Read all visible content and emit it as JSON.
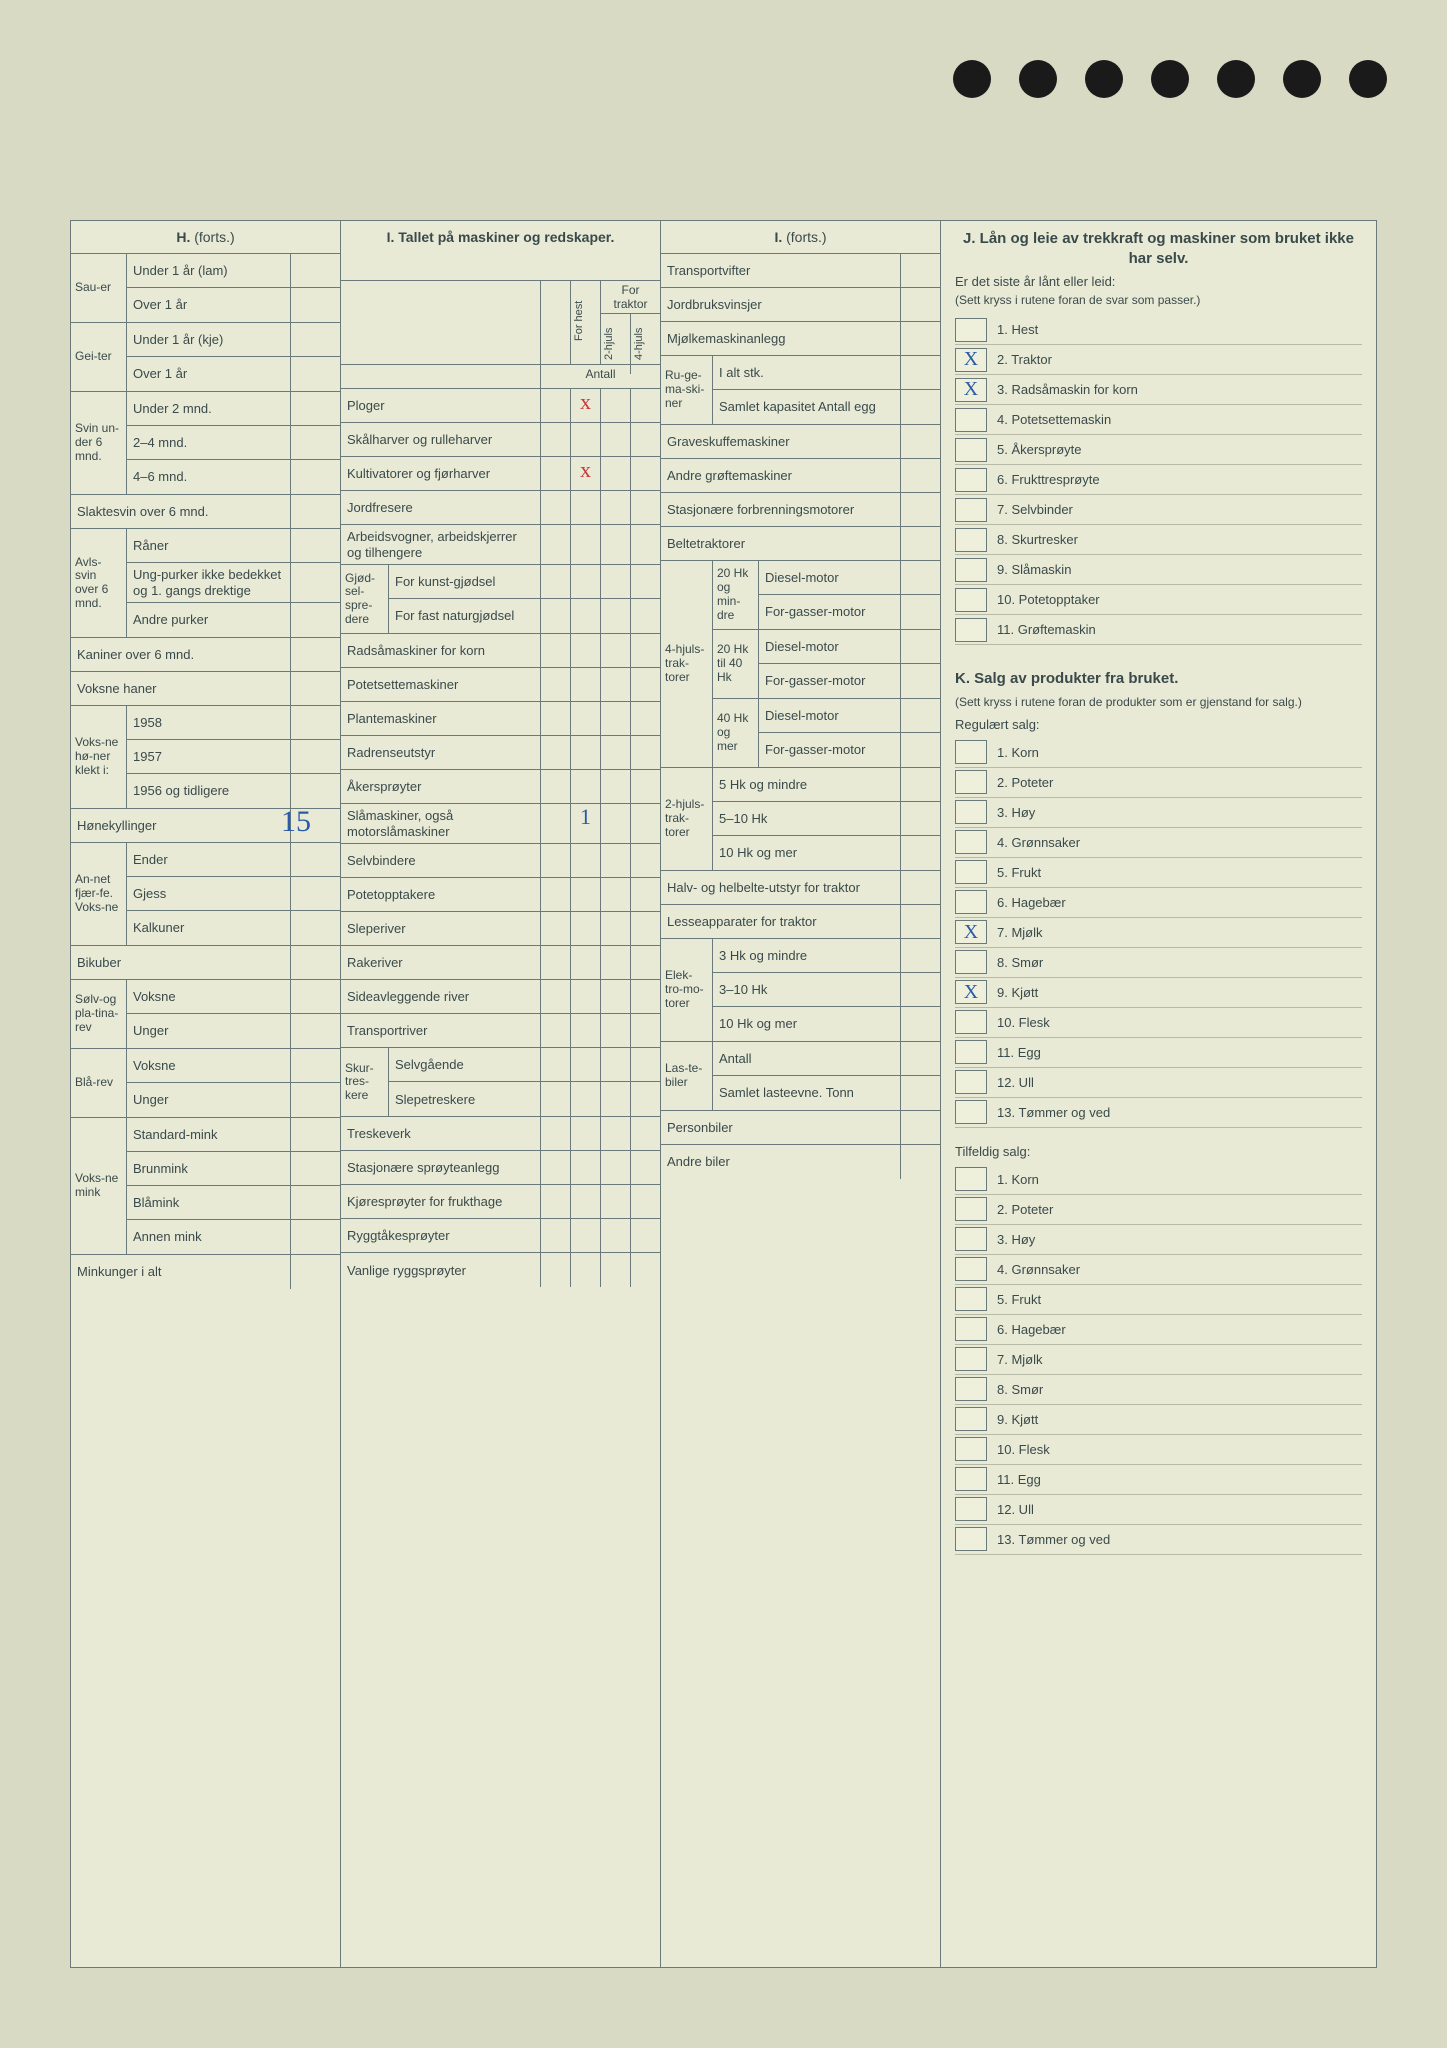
{
  "sectionH": {
    "title": "H.",
    "titleSuffix": "(forts.)",
    "groups": [
      {
        "side": "Sau-er",
        "rows": [
          {
            "l": "Under 1 år (lam)"
          },
          {
            "l": "Over 1 år"
          }
        ]
      },
      {
        "side": "Gei-ter",
        "rows": [
          {
            "l": "Under 1 år (kje)"
          },
          {
            "l": "Over 1 år"
          }
        ]
      },
      {
        "side": "Svin un-der 6 mnd.",
        "rows": [
          {
            "l": "Under 2 mnd."
          },
          {
            "l": "2–4 mnd."
          },
          {
            "l": "4–6 mnd."
          }
        ]
      }
    ],
    "rows2": [
      {
        "l": "Slaktesvin over 6 mnd."
      },
      {
        "side": "Avls-svin over 6 mnd.",
        "sub": [
          {
            "l": "Råner"
          },
          {
            "l": "Ung-purker ikke bedekket og 1. gangs drektige"
          },
          {
            "l": "Andre purker"
          }
        ]
      },
      {
        "l": "Kaniner over 6 mnd."
      },
      {
        "l": "Voksne haner"
      },
      {
        "side": "Voks-ne hø-ner klekt i:",
        "sub": [
          {
            "l": "1958"
          },
          {
            "l": "1957"
          },
          {
            "l": "1956 og tidligere"
          }
        ]
      },
      {
        "l": "Hønekyllinger",
        "val": "15"
      },
      {
        "side": "An-net fjær-fe. Voks-ne",
        "sub": [
          {
            "l": "Ender"
          },
          {
            "l": "Gjess"
          },
          {
            "l": "Kalkuner"
          }
        ]
      },
      {
        "l": "Bikuber"
      },
      {
        "side": "Sølv-og pla-tina-rev",
        "sub": [
          {
            "l": "Voksne"
          },
          {
            "l": "Unger"
          }
        ]
      },
      {
        "side": "Blå-rev",
        "sub": [
          {
            "l": "Voksne"
          },
          {
            "l": "Unger"
          }
        ]
      },
      {
        "side": "Voks-ne mink",
        "sub": [
          {
            "l": "Standard-mink"
          },
          {
            "l": "Brunmink"
          },
          {
            "l": "Blåmink"
          },
          {
            "l": "Annen mink"
          }
        ]
      },
      {
        "l": "Minkunger i alt"
      }
    ]
  },
  "sectionI": {
    "title": "I. Tallet på maskiner og redskaper.",
    "colheads": {
      "top": "For traktor",
      "left": "For hest",
      "c2": "2-hjuls",
      "c3": "4-hjuls",
      "antall": "Antall"
    },
    "rows": [
      {
        "l": "Ploger",
        "mark": "x",
        "markcolor": "red"
      },
      {
        "l": "Skålharver og rulleharver"
      },
      {
        "l": "Kultivatorer og fjørharver",
        "mark": "x",
        "markcolor": "red"
      },
      {
        "l": "Jordfresere"
      },
      {
        "l": "Arbeidsvogner, arbeidskjerrer og tilhengere"
      },
      {
        "side": "Gjød-sel-spre-dere",
        "sub": [
          {
            "l": "For kunst-gjødsel"
          },
          {
            "l": "For fast naturgjødsel"
          }
        ]
      },
      {
        "l": "Radsåmaskiner for korn"
      },
      {
        "l": "Potetsettemaskiner"
      },
      {
        "l": "Plantemaskiner"
      },
      {
        "l": "Radrenseutstyr"
      },
      {
        "l": "Åkersprøyter"
      },
      {
        "l": "Slåmaskiner, også motorslåmaskiner",
        "mark": "1"
      },
      {
        "l": "Selvbindere"
      },
      {
        "l": "Potetopptakere"
      },
      {
        "l": "Sleperiver"
      },
      {
        "l": "Rakeriver"
      },
      {
        "l": "Sideavleggende river"
      },
      {
        "l": "Transportriver"
      },
      {
        "side": "Skur-tres-kere",
        "sub": [
          {
            "l": "Selvgående"
          },
          {
            "l": "Slepetreskere"
          }
        ]
      },
      {
        "l": "Treskeverk"
      },
      {
        "l": "Stasjonære sprøyteanlegg"
      },
      {
        "l": "Kjøresprøyter for frukthage"
      },
      {
        "l": "Ryggtåkesprøyter"
      },
      {
        "l": "Vanlige ryggsprøyter"
      }
    ]
  },
  "sectionI2": {
    "title": "I.",
    "titleSuffix": "(forts.)",
    "rows": [
      {
        "l": "Transportvifter"
      },
      {
        "l": "Jordbruksvinsjer"
      },
      {
        "l": "Mjølkemaskinanlegg"
      },
      {
        "side": "Ru-ge-ma-ski-ner",
        "sub": [
          {
            "l": "I alt stk."
          },
          {
            "l": "Samlet kapasitet Antall egg"
          }
        ]
      },
      {
        "l": "Graveskuffemaskiner"
      },
      {
        "l": "Andre grøftemaskiner"
      },
      {
        "l": "Stasjonære forbrenningsmotorer"
      },
      {
        "l": "Beltetraktorer"
      },
      {
        "side": "4-hjuls-trak-torer",
        "subgroups": [
          {
            "g": "20 Hk og min-dre",
            "s": [
              {
                "l": "Diesel-motor"
              },
              {
                "l": "For-gasser-motor"
              }
            ]
          },
          {
            "g": "20 Hk til 40 Hk",
            "s": [
              {
                "l": "Diesel-motor"
              },
              {
                "l": "For-gasser-motor"
              }
            ]
          },
          {
            "g": "40 Hk og mer",
            "s": [
              {
                "l": "Diesel-motor"
              },
              {
                "l": "For-gasser-motor"
              }
            ]
          }
        ]
      },
      {
        "side": "2-hjuls-trak-torer",
        "sub": [
          {
            "l": "5 Hk og mindre"
          },
          {
            "l": "5–10 Hk"
          },
          {
            "l": "10 Hk og mer"
          }
        ]
      },
      {
        "l": "Halv- og helbelte-utstyr for traktor"
      },
      {
        "l": "Lesseapparater for traktor"
      },
      {
        "side": "Elek-tro-mo-torer",
        "sub": [
          {
            "l": "3 Hk og mindre"
          },
          {
            "l": "3–10 Hk"
          },
          {
            "l": "10 Hk og mer"
          }
        ]
      },
      {
        "side": "Las-te-biler",
        "sub": [
          {
            "l": "Antall"
          },
          {
            "l": "Samlet lasteevne. Tonn"
          }
        ]
      },
      {
        "l": "Personbiler"
      },
      {
        "l": "Andre biler"
      }
    ]
  },
  "sectionJ": {
    "title": "J. Lån og leie av trekkraft og maskiner som bruket ikke har selv.",
    "q": "Er det siste år lånt eller leid:",
    "note": "(Sett kryss i rutene foran de svar som passer.)",
    "items": [
      {
        "n": "1.",
        "l": "Hest"
      },
      {
        "n": "2.",
        "l": "Traktor",
        "x": true
      },
      {
        "n": "3.",
        "l": "Radsåmaskin for korn",
        "x": true
      },
      {
        "n": "4.",
        "l": "Potetsettemaskin"
      },
      {
        "n": "5.",
        "l": "Åkersprøyte"
      },
      {
        "n": "6.",
        "l": "Frukttresprøyte"
      },
      {
        "n": "7.",
        "l": "Selvbinder"
      },
      {
        "n": "8.",
        "l": "Skurtresker"
      },
      {
        "n": "9.",
        "l": "Slåmaskin"
      },
      {
        "n": "10.",
        "l": "Potetopptaker"
      },
      {
        "n": "11.",
        "l": "Grøftemaskin"
      }
    ]
  },
  "sectionK": {
    "title": "K. Salg av produkter fra bruket.",
    "note": "(Sett kryss i rutene foran de produkter som er gjenstand for salg.)",
    "reg": "Regulært salg:",
    "regItems": [
      {
        "n": "1.",
        "l": "Korn"
      },
      {
        "n": "2.",
        "l": "Poteter"
      },
      {
        "n": "3.",
        "l": "Høy"
      },
      {
        "n": "4.",
        "l": "Grønnsaker"
      },
      {
        "n": "5.",
        "l": "Frukt"
      },
      {
        "n": "6.",
        "l": "Hagebær"
      },
      {
        "n": "7.",
        "l": "Mjølk",
        "x": true
      },
      {
        "n": "8.",
        "l": "Smør"
      },
      {
        "n": "9.",
        "l": "Kjøtt",
        "x": true
      },
      {
        "n": "10.",
        "l": "Flesk"
      },
      {
        "n": "11.",
        "l": "Egg"
      },
      {
        "n": "12.",
        "l": "Ull"
      },
      {
        "n": "13.",
        "l": "Tømmer og ved"
      }
    ],
    "tilf": "Tilfeldig salg:",
    "tilfItems": [
      {
        "n": "1.",
        "l": "Korn"
      },
      {
        "n": "2.",
        "l": "Poteter"
      },
      {
        "n": "3.",
        "l": "Høy"
      },
      {
        "n": "4.",
        "l": "Grønnsaker"
      },
      {
        "n": "5.",
        "l": "Frukt"
      },
      {
        "n": "6.",
        "l": "Hagebær"
      },
      {
        "n": "7.",
        "l": "Mjølk"
      },
      {
        "n": "8.",
        "l": "Smør"
      },
      {
        "n": "9.",
        "l": "Kjøtt"
      },
      {
        "n": "10.",
        "l": "Flesk"
      },
      {
        "n": "11.",
        "l": "Egg"
      },
      {
        "n": "12.",
        "l": "Ull"
      },
      {
        "n": "13.",
        "l": "Tømmer og ved"
      }
    ]
  }
}
